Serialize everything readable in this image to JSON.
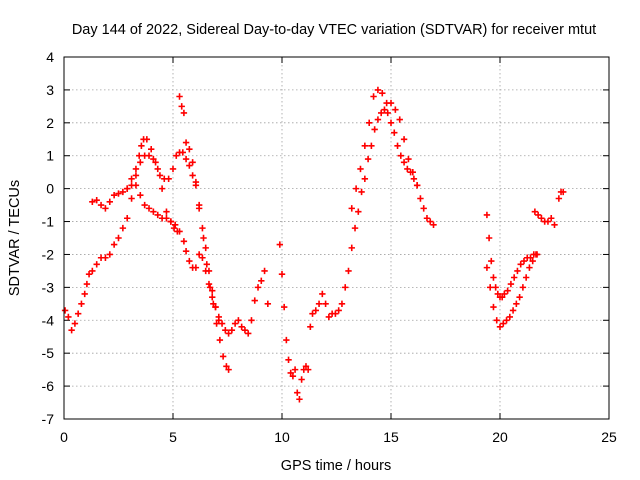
{
  "chart_data": {
    "type": "scatter",
    "title": "Day 144 of 2022, Sidereal Day-to-day VTEC variation (SDTVAR) for receiver mtut",
    "xlabel": "GPS time / hours",
    "ylabel": "SDTVAR / TECUs",
    "xlim": [
      0,
      25
    ],
    "ylim": [
      -7,
      4
    ],
    "xticks": [
      0,
      5,
      10,
      15,
      20,
      25
    ],
    "yticks": [
      -7,
      -6,
      -5,
      -4,
      -3,
      -2,
      -1,
      0,
      1,
      2,
      3,
      4
    ],
    "grid": true,
    "marker": "+",
    "color": "#ff0000",
    "series": [
      {
        "x": [
          0.05,
          0.2,
          0.35,
          0.5,
          0.65,
          0.8,
          0.95,
          1.05,
          1.15,
          1.3,
          1.5,
          1.7,
          1.9,
          2.1,
          2.3,
          2.5,
          2.7,
          2.9,
          3.1,
          3.3,
          3.45,
          3.55,
          3.65,
          3.8,
          4.0,
          4.2,
          4.4,
          4.6,
          4.8,
          5.0,
          5.15,
          5.3,
          5.45,
          5.6,
          5.75,
          5.9,
          6.05,
          6.2,
          6.4,
          6.55,
          6.7,
          6.85,
          7.0,
          7.15,
          7.3,
          7.45,
          7.55
        ],
        "y": [
          -3.7,
          -3.9,
          -4.3,
          -4.1,
          -3.8,
          -3.5,
          -3.2,
          -2.9,
          -2.6,
          -2.5,
          -2.3,
          -2.1,
          -2.1,
          -2.0,
          -1.7,
          -1.5,
          -1.2,
          -0.9,
          -0.3,
          0.4,
          1.0,
          1.3,
          1.5,
          1.5,
          1.2,
          0.8,
          0.4,
          0.3,
          0.3,
          0.6,
          1.0,
          1.1,
          1.1,
          0.9,
          0.7,
          0.4,
          0.1,
          -0.6,
          -1.5,
          -2.3,
          -3.0,
          -3.5,
          -4.1,
          -4.6,
          -5.1,
          -5.4,
          -5.5
        ]
      },
      {
        "x": [
          1.3,
          1.5,
          1.7,
          1.9,
          2.1,
          2.3,
          2.5,
          2.7,
          2.9,
          3.1,
          3.3,
          3.5,
          3.7,
          3.9,
          4.1,
          4.3,
          4.5,
          4.7,
          4.9,
          5.1,
          5.3,
          5.5,
          5.6,
          5.75,
          5.9,
          6.05,
          6.2,
          6.35,
          6.5,
          6.65,
          6.8,
          6.95,
          7.1,
          7.25,
          7.4,
          7.55,
          7.7,
          7.85,
          8.0,
          8.15,
          8.3,
          8.45,
          8.6,
          8.75,
          8.9,
          9.05,
          9.2,
          9.35
        ],
        "y": [
          -0.4,
          -0.35,
          -0.5,
          -0.6,
          -0.4,
          -0.2,
          -0.15,
          -0.1,
          0.0,
          0.1,
          0.1,
          -0.2,
          -0.5,
          -0.6,
          -0.7,
          -0.8,
          -0.9,
          -0.9,
          -1.0,
          -1.1,
          -1.3,
          -1.6,
          -1.9,
          -2.2,
          -2.4,
          -2.4,
          -2.0,
          -2.1,
          -2.5,
          -2.9,
          -3.3,
          -3.6,
          -3.9,
          -4.1,
          -4.3,
          -4.4,
          -4.3,
          -4.1,
          -4.0,
          -4.2,
          -4.3,
          -4.4,
          -4.0,
          -3.4,
          -3.0,
          -2.8,
          -2.5,
          -3.5
        ]
      },
      {
        "x": [
          2.9,
          3.1,
          3.3,
          3.5,
          3.7,
          3.9,
          4.1,
          4.3,
          4.5,
          4.7,
          4.9,
          5.05,
          5.2,
          5.3,
          5.4,
          5.5,
          5.6,
          5.75,
          5.9,
          6.05,
          6.2,
          6.35,
          6.5,
          6.65,
          6.8,
          6.95,
          7.1
        ],
        "y": [
          0.0,
          0.3,
          0.6,
          0.8,
          1.0,
          1.0,
          0.9,
          0.6,
          0.0,
          -0.7,
          -1.0,
          -1.2,
          -1.3,
          2.8,
          2.5,
          2.3,
          1.4,
          1.2,
          0.8,
          0.2,
          -0.5,
          -1.2,
          -1.8,
          -2.5,
          -3.1,
          -3.6,
          -4.0
        ]
      },
      {
        "x": [
          9.9,
          10.0,
          10.1,
          10.2,
          10.3,
          10.4,
          10.5,
          10.6,
          10.7,
          10.8,
          10.9,
          11.0,
          11.1,
          11.2,
          11.3,
          11.4,
          11.55,
          11.7,
          11.85,
          12.0,
          12.15,
          12.3,
          12.45,
          12.6,
          12.75,
          12.9,
          13.05,
          13.2,
          13.35,
          13.5,
          13.65,
          13.8,
          13.95,
          14.1,
          14.25,
          14.4,
          14.55,
          14.7,
          14.85,
          15.0,
          15.15,
          15.3,
          15.45,
          15.6,
          15.75,
          15.9,
          16.05,
          16.2,
          16.35,
          16.5,
          16.65,
          16.8,
          16.95
        ],
        "y": [
          -1.7,
          -2.6,
          -3.6,
          -4.6,
          -5.2,
          -5.6,
          -5.7,
          -5.5,
          -6.2,
          -6.4,
          -5.8,
          -5.5,
          -5.4,
          -5.5,
          -4.2,
          -3.8,
          -3.7,
          -3.5,
          -3.2,
          -3.5,
          -3.9,
          -3.8,
          -3.8,
          -3.7,
          -3.5,
          -3.0,
          -2.5,
          -1.8,
          -1.2,
          -0.7,
          -0.1,
          0.3,
          0.9,
          1.3,
          1.8,
          2.1,
          2.3,
          2.4,
          2.3,
          2.0,
          1.7,
          1.3,
          1.0,
          0.8,
          0.6,
          0.5,
          0.3,
          0.1,
          -0.3,
          -0.6,
          -0.9,
          -1.0,
          -1.1
        ]
      },
      {
        "x": [
          13.2,
          13.4,
          13.6,
          13.8,
          14.0,
          14.2,
          14.4,
          14.6,
          14.8,
          15.0,
          15.2,
          15.4,
          15.6,
          15.8,
          16.0,
          16.2
        ],
        "y": [
          -0.6,
          0.0,
          0.6,
          1.3,
          2.0,
          2.8,
          3.0,
          2.9,
          2.6,
          2.6,
          2.4,
          2.1,
          1.5,
          0.9,
          0.5,
          0.1
        ]
      },
      {
        "x": [
          19.4,
          19.5,
          19.6,
          19.7,
          19.8,
          19.9,
          20.0,
          20.1,
          20.2,
          20.35,
          20.5,
          20.65,
          20.8,
          20.95,
          21.1,
          21.25,
          21.4,
          21.55,
          21.7
        ],
        "y": [
          -0.8,
          -1.5,
          -2.2,
          -2.7,
          -3.0,
          -3.2,
          -3.3,
          -3.3,
          -3.2,
          -3.1,
          -2.9,
          -2.7,
          -2.5,
          -2.3,
          -2.2,
          -2.1,
          -2.1,
          -2.0,
          -2.0
        ]
      },
      {
        "x": [
          19.4,
          19.55,
          19.7,
          19.85,
          20.0,
          20.15,
          20.3,
          20.45,
          20.6,
          20.75,
          20.9,
          21.05,
          21.2,
          21.35,
          21.5,
          21.65
        ],
        "y": [
          -2.4,
          -3.0,
          -3.6,
          -4.0,
          -4.2,
          -4.1,
          -4.0,
          -3.9,
          -3.7,
          -3.5,
          -3.3,
          -3.0,
          -2.7,
          -2.4,
          -2.2,
          -2.0
        ]
      },
      {
        "x": [
          21.6,
          21.75,
          21.9,
          22.05,
          22.2,
          22.35,
          22.5,
          22.7,
          22.8,
          22.9
        ],
        "y": [
          -0.7,
          -0.8,
          -0.9,
          -1.0,
          -1.0,
          -0.9,
          -1.1,
          -0.3,
          -0.1,
          -0.1
        ]
      }
    ]
  }
}
